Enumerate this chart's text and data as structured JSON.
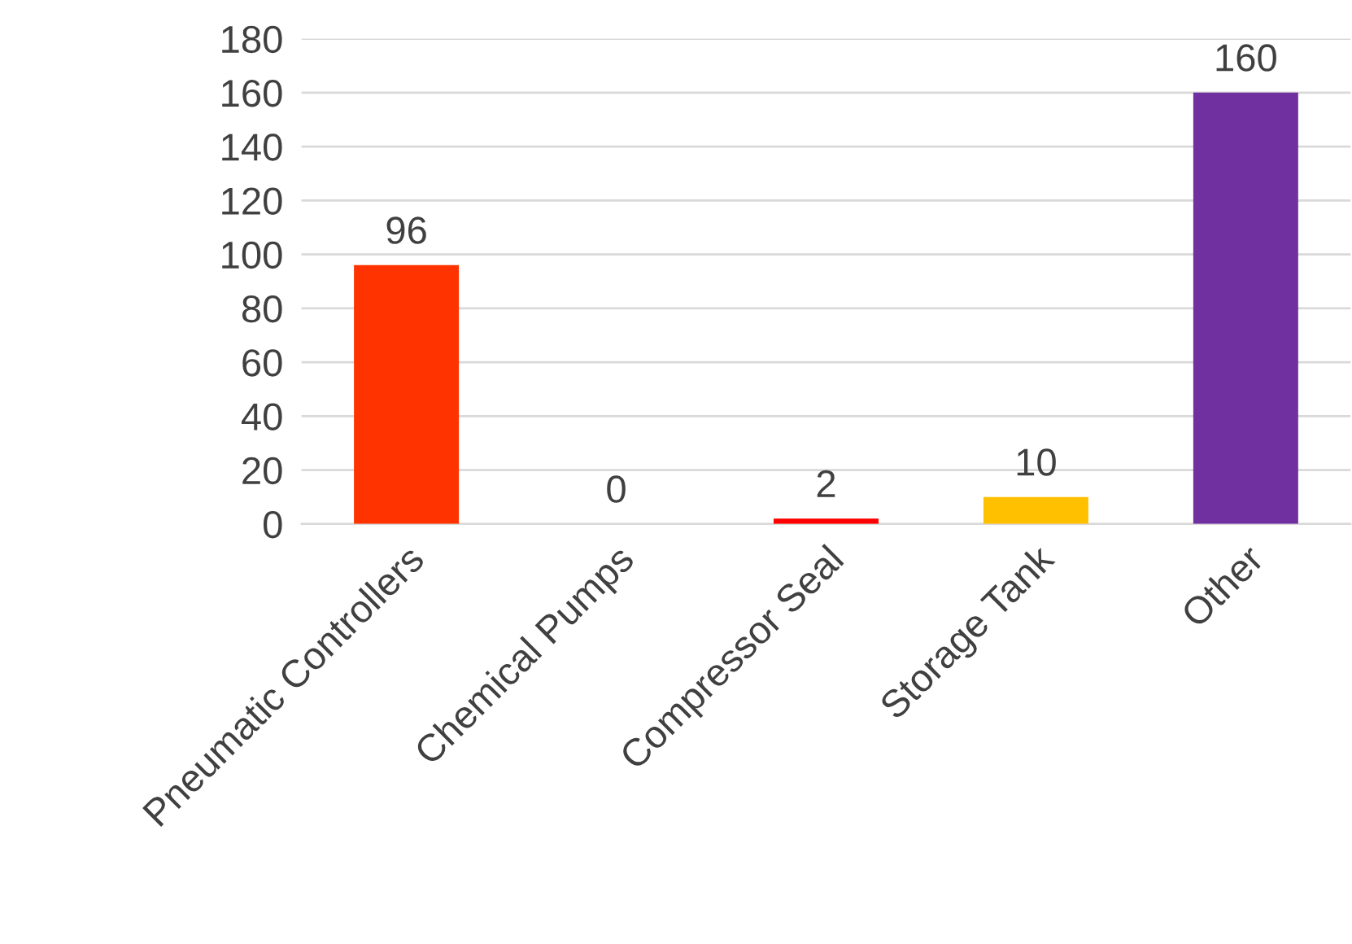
{
  "chart_data": {
    "type": "bar",
    "categories": [
      "Pneumatic Controllers",
      "Chemical Pumps",
      "Compressor Seal",
      "Storage Tank",
      "Other"
    ],
    "values": [
      96,
      0,
      2,
      10,
      160
    ],
    "colors": [
      "#ff3300",
      "#ff3300",
      "#ff0000",
      "#ffc000",
      "#7030a0"
    ],
    "ylim": [
      0,
      180
    ],
    "yticks": [
      0,
      20,
      40,
      60,
      80,
      100,
      120,
      140,
      160,
      180
    ],
    "grid": "y",
    "data_labels": true
  }
}
